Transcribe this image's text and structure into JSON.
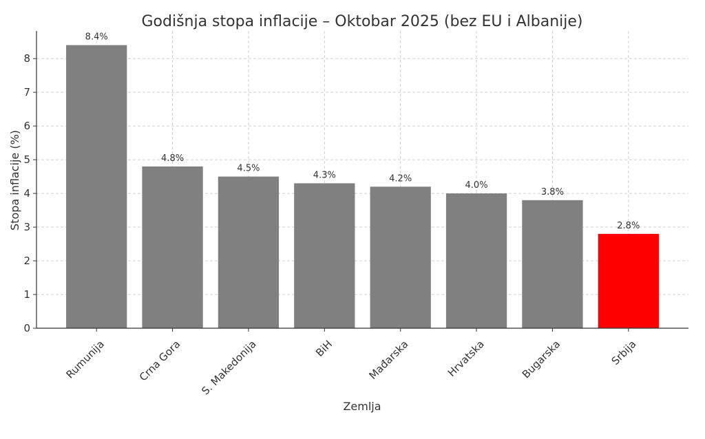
{
  "chart_data": {
    "type": "bar",
    "title": "Godišnja stopa inflacije – Oktobar 2025 (bez EU i Albanije)",
    "x_label": "Zemlja",
    "y_label": "Stopa inflacije (%)",
    "categories": [
      "Rumunija",
      "Crna Gora",
      "S. Makedonija",
      "BiH",
      "Mađarska",
      "Hrvatska",
      "Bugarska",
      "Srbija"
    ],
    "values": [
      8.4,
      4.8,
      4.5,
      4.3,
      4.2,
      4.0,
      3.8,
      2.8
    ],
    "value_labels": [
      "8.4%",
      "4.8%",
      "4.5%",
      "4.3%",
      "4.2%",
      "4.0%",
      "3.8%",
      "2.8%"
    ],
    "colors": [
      "#808080",
      "#808080",
      "#808080",
      "#808080",
      "#808080",
      "#808080",
      "#808080",
      "#ff0000"
    ],
    "ylim": [
      0,
      8.82
    ],
    "yticks": [
      0,
      1,
      2,
      3,
      4,
      5,
      6,
      7,
      8
    ],
    "grid": true
  }
}
